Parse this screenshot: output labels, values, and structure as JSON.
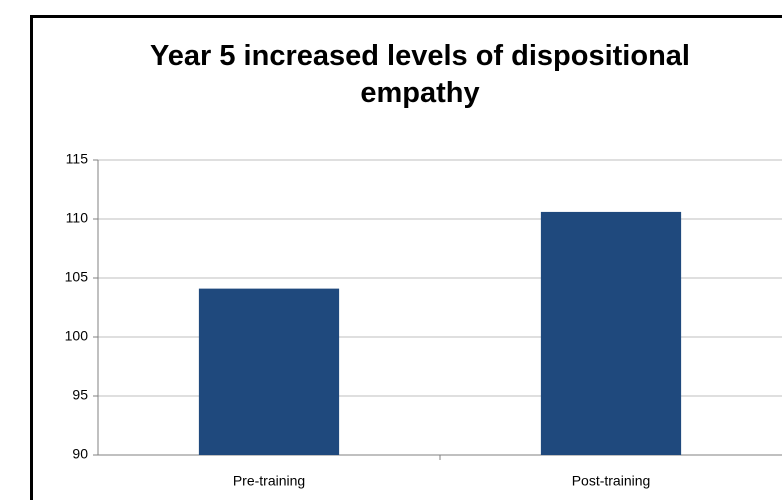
{
  "chart_data": {
    "type": "bar",
    "title": "Year 5 increased levels of dispositional empathy",
    "categories": [
      "Pre-training",
      "Post-training"
    ],
    "values": [
      104.1,
      110.6
    ],
    "color": "#1f497d",
    "ylim": [
      90,
      115
    ],
    "yticks": [
      90,
      95,
      100,
      105,
      110,
      115
    ],
    "grid": true
  }
}
